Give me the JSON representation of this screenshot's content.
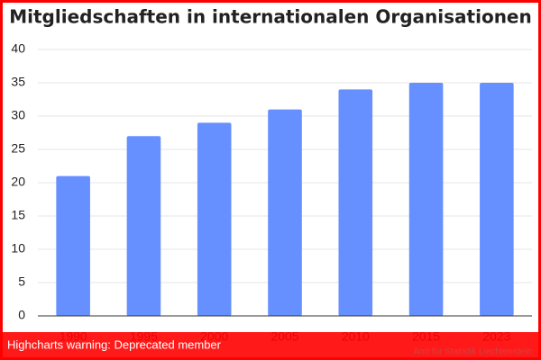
{
  "chart_data": {
    "type": "bar",
    "title": "Mitgliedschaften in internationalen Organisationen",
    "categories": [
      "1990",
      "1995",
      "2000",
      "2005",
      "2010",
      "2015",
      "2023"
    ],
    "values": [
      21,
      27,
      29,
      31,
      34,
      35,
      35
    ],
    "color": "#668fff",
    "ylim": [
      0,
      40
    ],
    "yticks": [
      0,
      5,
      10,
      15,
      20,
      25,
      30,
      35,
      40
    ],
    "grid": true,
    "credit": "Amt für Statistik Liechtenstein",
    "warning": "Highcharts warning: Deprecated member"
  }
}
